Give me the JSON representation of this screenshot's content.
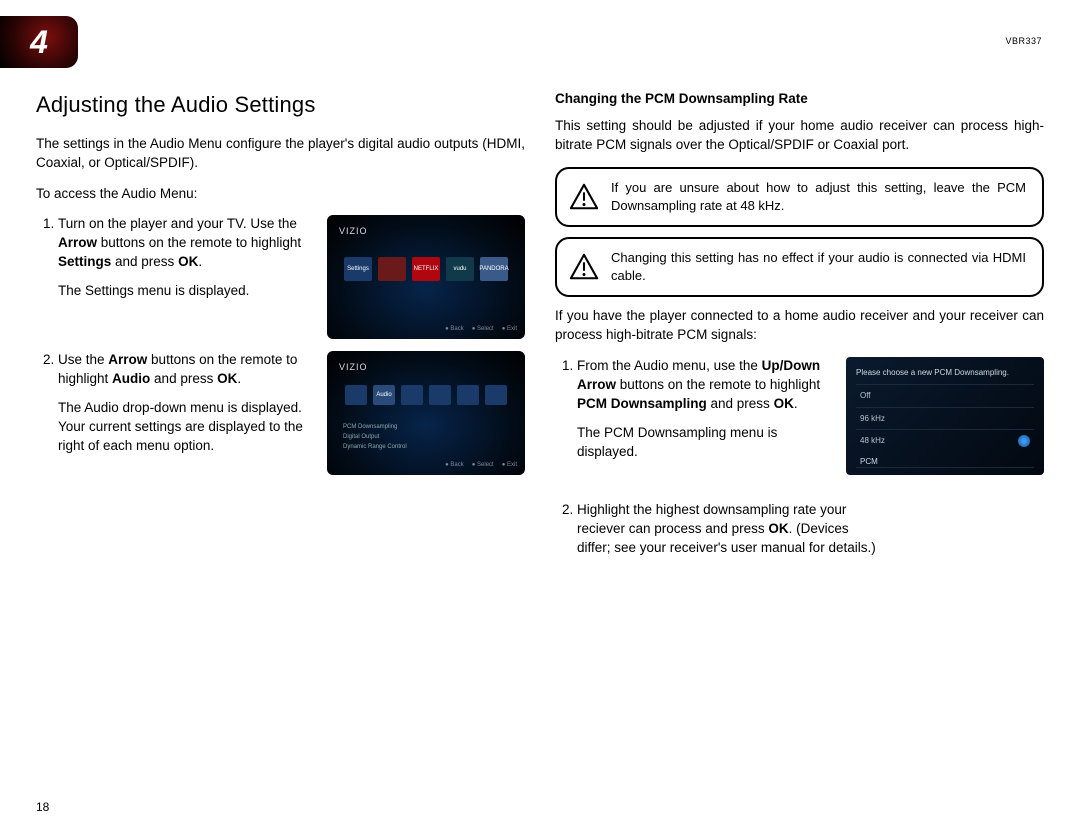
{
  "chapter_number": "4",
  "model": "VBR337",
  "page_number": "18",
  "left": {
    "heading": "Adjusting the Audio Settings",
    "intro": "The settings in the Audio Menu configure the player's digital audio outputs (HDMI, Coaxial, or Optical/SPDIF).",
    "access": "To access the Audio Menu:",
    "step1_a": "Turn on the player and your TV. Use the ",
    "step1_b": "Arrow",
    "step1_c": " buttons on the remote to highlight ",
    "step1_d": "Settings",
    "step1_e": " and press ",
    "step1_f": "OK",
    "step1_g": ".",
    "step1_sub": "The Settings menu is displayed.",
    "step2_a": "Use the ",
    "step2_b": "Arrow",
    "step2_c": " buttons on the remote to highlight ",
    "step2_d": "Audio",
    "step2_e": " and press ",
    "step2_f": "OK",
    "step2_g": ".",
    "step2_sub": "The Audio drop-down menu is displayed. Your current settings are displayed to the right of each menu option.",
    "tv_brand": "VIZIO",
    "shot1_tiles": [
      {
        "label": "Settings",
        "bg": "#1a3a6a"
      },
      {
        "label": "",
        "bg": "#6a1a1a"
      },
      {
        "label": "NETFLIX",
        "bg": "#b00610"
      },
      {
        "label": "vudu",
        "bg": "#103a4a"
      },
      {
        "label": "PANDORA",
        "bg": "#3a5a8a"
      }
    ],
    "shot2_tiles": [
      {
        "label": "",
        "bg": "#1a3a6a"
      },
      {
        "label": "Audio",
        "bg": "#2a4a7a"
      },
      {
        "label": "",
        "bg": "#1a3a6a"
      },
      {
        "label": "",
        "bg": "#1a3a6a"
      },
      {
        "label": "",
        "bg": "#1a3a6a"
      },
      {
        "label": "",
        "bg": "#1a3a6a"
      }
    ],
    "shot2_list": [
      "PCM Downsampling",
      "Digital Output",
      "Dynamic Range Control"
    ],
    "tv_foot": [
      "● Back",
      "● Select",
      "● Exit"
    ]
  },
  "right": {
    "subheading": "Changing the PCM Downsampling Rate",
    "intro": "This setting should be adjusted if your home audio receiver can process high-bitrate PCM signals over the Optical/SPDIF or Coaxial port.",
    "callout1": "If you are unsure about how to adjust this setting, leave the PCM Downsampling rate at 48 kHz.",
    "callout2": "Changing this setting has no effect if your audio is connected via HDMI cable.",
    "para2": "If you have the player connected to a home audio receiver and your receiver can process high-bitrate PCM signals:",
    "step1_a": "From the Audio menu, use the ",
    "step1_b": "Up/Down Arrow",
    "step1_c": " buttons on the remote to highlight ",
    "step1_d": "PCM Downsampling",
    "step1_e": " and press ",
    "step1_f": "OK",
    "step1_g": ".",
    "step1_sub": "The PCM Downsampling menu is displayed.",
    "step2_a": "Highlight the highest downsampling rate your reciever can process and press ",
    "step2_b": "OK",
    "step2_c": ". (Devices differ; see your receiver's user manual for details.)",
    "pcm_title": "Please choose a new PCM Downsampling.",
    "pcm_rows": [
      "Off",
      "96 kHz",
      "48 kHz"
    ],
    "pcm_selected_index": 2,
    "pcm_cat": "PCM",
    "pcm_cat2": "Off"
  }
}
